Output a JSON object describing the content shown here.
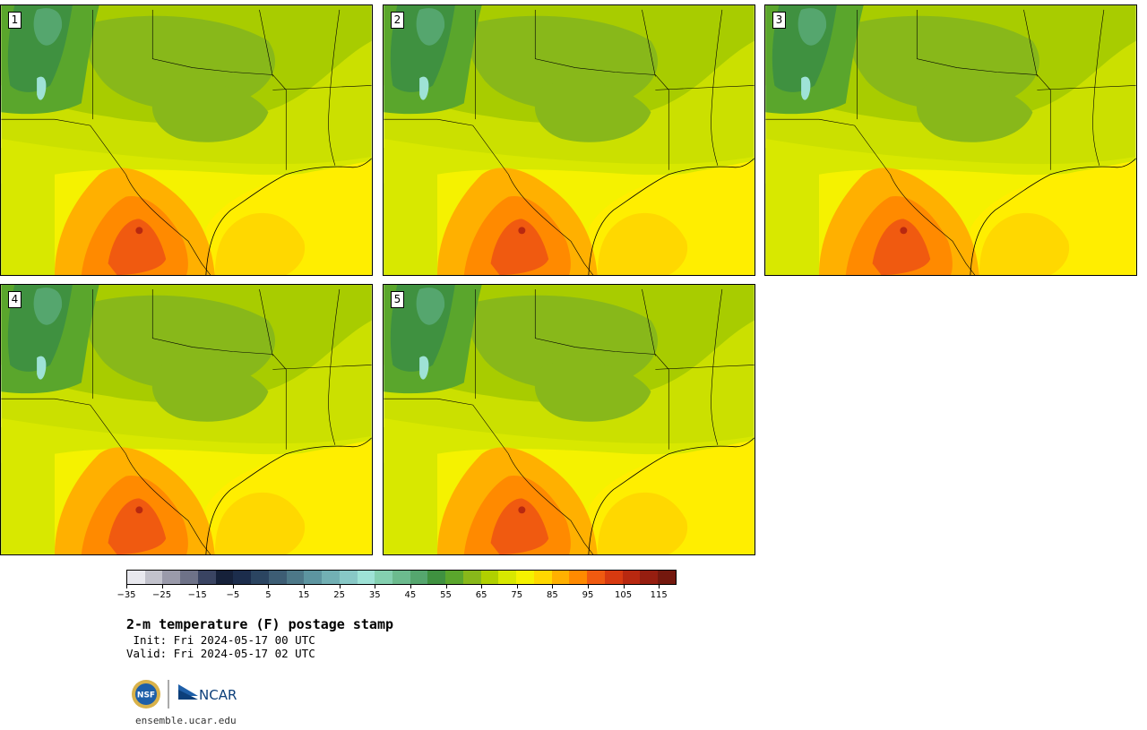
{
  "panels": [
    {
      "label": "1"
    },
    {
      "label": "2"
    },
    {
      "label": "3"
    },
    {
      "label": "4"
    },
    {
      "label": "5"
    }
  ],
  "colorbar": {
    "colors": [
      "#e8e8ee",
      "#c2c2cc",
      "#9a9aaa",
      "#6e7288",
      "#3a4462",
      "#16213a",
      "#1c2d4c",
      "#2b4561",
      "#3d5d74",
      "#4d7888",
      "#5d95a0",
      "#72b0b4",
      "#88c8c6",
      "#9ee2d6",
      "#84d0b0",
      "#6cbb8e",
      "#55a66e",
      "#3f9140",
      "#5aa62c",
      "#88b81a",
      "#b0d000",
      "#d8e800",
      "#f5f200",
      "#ffd800",
      "#ffb000",
      "#ff8a00",
      "#f05a10",
      "#d83a10",
      "#b82810",
      "#961e10",
      "#74180e"
    ],
    "tick_labels": [
      "−35",
      "−25",
      "−15",
      "−5",
      "5",
      "15",
      "25",
      "35",
      "45",
      "55",
      "65",
      "75",
      "85",
      "95",
      "105",
      "115"
    ]
  },
  "title": "2-m temperature (F) postage stamp",
  "init": " Init: Fri 2024-05-17 00 UTC",
  "valid": "Valid: Fri 2024-05-17 02 UTC",
  "logos": {
    "nsf": "NSF",
    "ncar": "NCAR"
  },
  "site": "ensemble.ucar.edu"
}
